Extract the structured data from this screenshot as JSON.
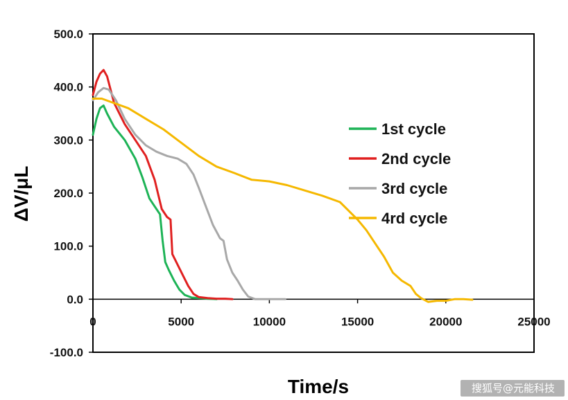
{
  "watermark": "搜狐号@元能科技",
  "chart_data": {
    "type": "line",
    "title": "",
    "xlabel": "Time/s",
    "ylabel": "ΔV/μL",
    "xlim": [
      0,
      25000
    ],
    "ylim": [
      -100,
      500
    ],
    "x_ticks": [
      0,
      5000,
      10000,
      15000,
      20000,
      25000
    ],
    "y_ticks": [
      -100,
      0,
      100,
      200,
      300,
      400,
      500
    ],
    "y_tick_labels": [
      "-100.0",
      "0.0",
      "100.0",
      "200.0",
      "300.0",
      "400.0",
      "500.0"
    ],
    "x_tick_labels": [
      "0",
      "5000",
      "10000",
      "15000",
      "20000",
      "25000"
    ],
    "grid": false,
    "legend_position": "right",
    "series": [
      {
        "name": "1st cycle",
        "color": "#1db356",
        "x": [
          0,
          200,
          400,
          600,
          800,
          1200,
          1800,
          2400,
          2800,
          3200,
          3500,
          3800,
          3950,
          4100,
          4300,
          4600,
          4900,
          5200,
          5600,
          6000,
          6500,
          7000
        ],
        "y": [
          310,
          340,
          360,
          365,
          350,
          325,
          300,
          265,
          230,
          190,
          175,
          160,
          110,
          70,
          55,
          35,
          18,
          8,
          3,
          2,
          1,
          0
        ]
      },
      {
        "name": "2nd cycle",
        "color": "#e02020",
        "x": [
          0,
          200,
          400,
          600,
          800,
          1200,
          1800,
          2400,
          3000,
          3500,
          3900,
          4200,
          4400,
          4500,
          4800,
          5100,
          5400,
          5700,
          6000,
          6500,
          7000,
          7500,
          7900
        ],
        "y": [
          385,
          410,
          425,
          432,
          420,
          370,
          330,
          300,
          270,
          225,
          170,
          155,
          150,
          85,
          65,
          45,
          25,
          10,
          4,
          2,
          1,
          1,
          0
        ]
      },
      {
        "name": "3rd cycle",
        "color": "#a8a8a8",
        "x": [
          0,
          300,
          600,
          900,
          1300,
          1800,
          2400,
          3000,
          3600,
          4200,
          4800,
          5300,
          5700,
          6000,
          6400,
          6800,
          7200,
          7400,
          7600,
          7900,
          8200,
          8500,
          8800,
          9200,
          9800,
          10400,
          10900
        ],
        "y": [
          375,
          390,
          398,
          395,
          375,
          340,
          310,
          290,
          278,
          270,
          265,
          255,
          235,
          210,
          175,
          140,
          115,
          110,
          75,
          50,
          35,
          18,
          5,
          0,
          0,
          0,
          0
        ]
      },
      {
        "name": "4rd cycle",
        "color": "#f5b800",
        "x": [
          0,
          500,
          1000,
          2000,
          3000,
          4000,
          5000,
          6000,
          7000,
          8000,
          9000,
          10000,
          11000,
          12000,
          13000,
          14000,
          15000,
          15500,
          16000,
          16500,
          17000,
          17500,
          18000,
          18300,
          18600,
          19000,
          19500,
          20000,
          20500,
          21000,
          21500
        ],
        "y": [
          378,
          378,
          372,
          360,
          340,
          320,
          295,
          270,
          250,
          238,
          225,
          222,
          215,
          205,
          195,
          183,
          150,
          130,
          105,
          80,
          50,
          35,
          25,
          10,
          2,
          -5,
          -3,
          -3,
          0,
          0,
          -1
        ]
      }
    ]
  }
}
